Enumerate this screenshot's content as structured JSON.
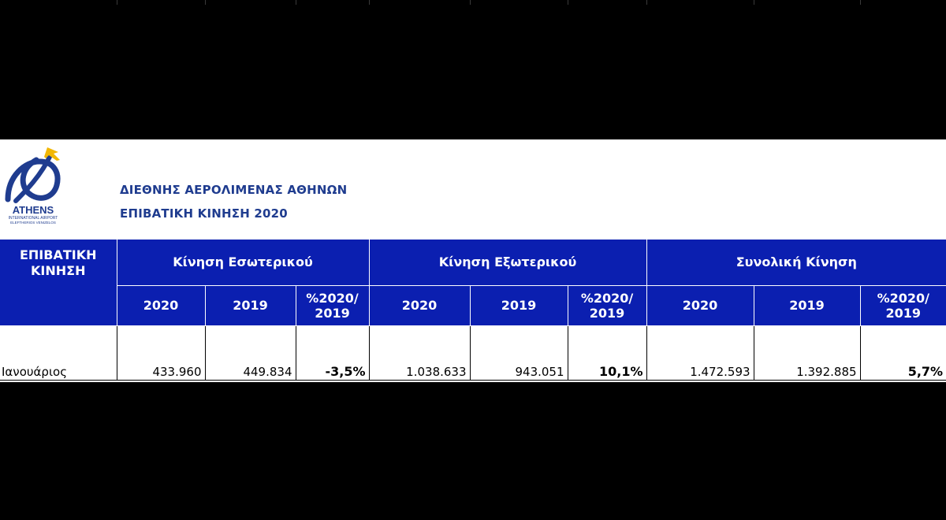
{
  "header": {
    "logo_text": "ATHENS",
    "logo_subtext_1": "INTERNATIONAL AIRPORT",
    "logo_subtext_2": "ELEFTHERIOS VENIZELOS",
    "title": "ΔΙΕΘΝΗΣ ΑΕΡΟΛΙΜΕΝΑΣ ΑΘΗΝΩΝ",
    "subtitle": "ΕΠΙΒΑΤΙΚΗ ΚΙΝΗΣΗ 2020"
  },
  "table": {
    "corner_label_1": "ΕΠΙΒΑΤΙΚΗ",
    "corner_label_2": "ΚΙΝΗΣΗ",
    "groups": [
      "Κίνηση Εσωτερικού",
      "Κίνηση Εξωτερικού",
      "Συνολική Κίνηση"
    ],
    "subheaders": {
      "year_2020": "2020",
      "year_2019": "2019",
      "pct_line1": "%2020/",
      "pct_line2": "2019"
    },
    "rows": [
      {
        "month": "Ιανουάριος",
        "domestic_2020": "433.960",
        "domestic_2019": "449.834",
        "domestic_pct": "-3,5%",
        "international_2020": "1.038.633",
        "international_2019": "943.051",
        "international_pct": "10,1%",
        "total_2020": "1.472.593",
        "total_2019": "1.392.885",
        "total_pct": "5,7%"
      }
    ]
  },
  "colors": {
    "header_bg": "#0b1fb0",
    "title_text": "#1f3c8f",
    "logo_blue": "#1f3c8f",
    "logo_yellow": "#f2b705"
  }
}
